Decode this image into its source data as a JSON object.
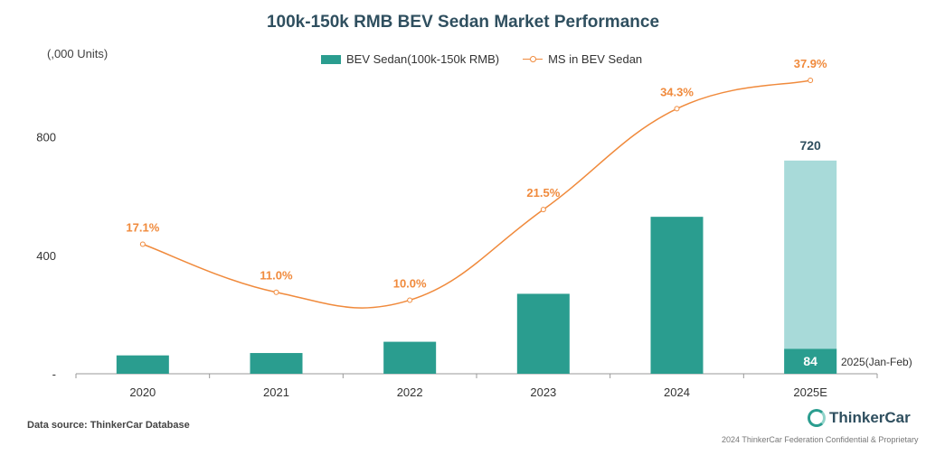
{
  "title": "100k-150k RMB BEV Sedan Market Performance",
  "unit_label": "(,000 Units)",
  "legend": {
    "bar": "BEV Sedan(100k-150k RMB)",
    "line": "MS in BEV Sedan"
  },
  "footer": {
    "source": "Data source: ThinkerCar Database",
    "brand": "ThinkerCar",
    "confidential": "2024 ThinkerCar Federation Confidential & Proprietary"
  },
  "colors": {
    "bar": "#2a9d8f",
    "bar_estimate": "#a8dad9",
    "line": "#f08a3c",
    "axis": "#999999"
  },
  "chart_data": {
    "type": "bar",
    "categories": [
      "2020",
      "2021",
      "2022",
      "2023",
      "2024",
      "2025E"
    ],
    "y_ticks": [
      "-",
      "400",
      "800"
    ],
    "ylim": [
      0,
      1020
    ],
    "series": [
      {
        "name": "BEV Sedan(100k-150k RMB)",
        "type": "bar",
        "values": [
          62,
          70,
          108,
          270,
          530,
          84
        ],
        "estimate_total": [
          null,
          null,
          null,
          null,
          null,
          720
        ]
      },
      {
        "name": "MS in BEV Sedan",
        "type": "line",
        "values": [
          17.1,
          11.0,
          10.0,
          21.5,
          34.3,
          37.9
        ],
        "labels": [
          "17.1%",
          "11.0%",
          "10.0%",
          "21.5%",
          "34.3%",
          "37.9%"
        ]
      }
    ],
    "bar_labels": {
      "2025E_total": "720",
      "2025E_actual": "84",
      "2025E_actual_note": "2025(Jan-Feb)"
    }
  }
}
